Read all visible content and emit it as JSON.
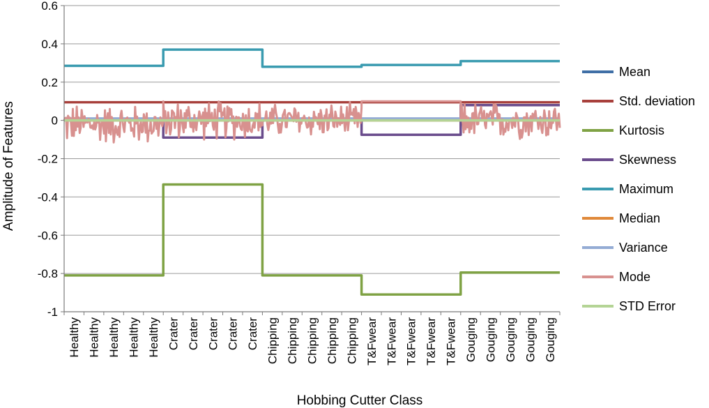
{
  "chart_data": {
    "type": "line",
    "xlabel": "Hobbing Cutter Class",
    "ylabel": "Amplitude of Features",
    "ylim": [
      -1,
      0.6
    ],
    "ytick_step": 0.2,
    "yticks": [
      "0.6",
      "0.4",
      "0.2",
      "0",
      "-0.2",
      "-0.4",
      "-0.6",
      "-0.8",
      "-1"
    ],
    "grid": "horizontal",
    "legend_position": "right",
    "categories": [
      "Healthy",
      "Healthy",
      "Healthy",
      "Healthy",
      "Healthy",
      "Crater",
      "Crater",
      "Crater",
      "Crater",
      "Crater",
      "Chipping",
      "Chipping",
      "Chipping",
      "Chipping",
      "Chipping",
      "T&Fwear",
      "T&Fwear",
      "T&Fwear",
      "T&Fwear",
      "T&Fwear",
      "Gouging",
      "Gouging",
      "Gouging",
      "Gouging",
      "Gouging"
    ],
    "series": [
      {
        "name": "Mean",
        "color": "#3f6fa6",
        "style": "step",
        "segments": [
          {
            "class": "Healthy",
            "value": 0.0
          },
          {
            "class": "Crater",
            "value": 0.0
          },
          {
            "class": "Chipping",
            "value": 0.0
          },
          {
            "class": "T&Fwear",
            "value": 0.0
          },
          {
            "class": "Gouging",
            "value": 0.0
          }
        ]
      },
      {
        "name": "Std. deviation",
        "color": "#a8403c",
        "style": "step",
        "segments": [
          {
            "class": "Healthy",
            "value": 0.095
          },
          {
            "class": "Crater",
            "value": 0.095
          },
          {
            "class": "Chipping",
            "value": 0.095
          },
          {
            "class": "T&Fwear",
            "value": 0.095
          },
          {
            "class": "Gouging",
            "value": 0.095
          }
        ]
      },
      {
        "name": "Kurtosis",
        "color": "#7fa244",
        "style": "step",
        "segments": [
          {
            "class": "Healthy",
            "value": -0.81
          },
          {
            "class": "Crater",
            "value": -0.335
          },
          {
            "class": "Chipping",
            "value": -0.81
          },
          {
            "class": "T&Fwear",
            "value": -0.91
          },
          {
            "class": "Gouging",
            "value": -0.795
          }
        ]
      },
      {
        "name": "Skewness",
        "color": "#6a4c8c",
        "style": "step",
        "segments": [
          {
            "class": "Healthy",
            "value": 0.0
          },
          {
            "class": "Crater",
            "value": -0.09
          },
          {
            "class": "Chipping",
            "value": 0.0
          },
          {
            "class": "T&Fwear",
            "value": -0.075
          },
          {
            "class": "Gouging",
            "value": 0.08
          }
        ]
      },
      {
        "name": "Maximum",
        "color": "#3a9bb0",
        "style": "step",
        "segments": [
          {
            "class": "Healthy",
            "value": 0.285
          },
          {
            "class": "Crater",
            "value": 0.37
          },
          {
            "class": "Chipping",
            "value": 0.28
          },
          {
            "class": "T&Fwear",
            "value": 0.29
          },
          {
            "class": "Gouging",
            "value": 0.31
          }
        ]
      },
      {
        "name": "Median",
        "color": "#e0893a",
        "style": "step",
        "segments": [
          {
            "class": "Healthy",
            "value": 0.0
          },
          {
            "class": "Crater",
            "value": 0.0
          },
          {
            "class": "Chipping",
            "value": 0.0
          },
          {
            "class": "T&Fwear",
            "value": 0.0
          },
          {
            "class": "Gouging",
            "value": 0.0
          }
        ]
      },
      {
        "name": "Variance",
        "color": "#94acd4",
        "style": "step",
        "segments": [
          {
            "class": "Healthy",
            "value": 0.01
          },
          {
            "class": "Crater",
            "value": 0.01
          },
          {
            "class": "Chipping",
            "value": 0.01
          },
          {
            "class": "T&Fwear",
            "value": 0.01
          },
          {
            "class": "Gouging",
            "value": 0.01
          }
        ]
      },
      {
        "name": "Mode",
        "color": "#d8918f",
        "style": "noise",
        "segments": [
          {
            "class": "Healthy",
            "center": -0.02,
            "amplitude": 0.12,
            "min": -0.17,
            "max": 0.12
          },
          {
            "class": "Crater",
            "center": 0.0,
            "amplitude": 0.12,
            "min": -0.1,
            "max": 0.15
          },
          {
            "class": "Chipping",
            "center": 0.0,
            "amplitude": 0.1,
            "min": -0.08,
            "max": 0.11
          },
          {
            "class": "T&Fwear",
            "center": 0.1,
            "amplitude": 0.0,
            "min": 0.1,
            "max": 0.1
          },
          {
            "class": "Gouging",
            "center": 0.0,
            "amplitude": 0.11,
            "min": -0.11,
            "max": 0.12
          }
        ]
      },
      {
        "name": "STD Error",
        "color": "#b4d495",
        "style": "step",
        "segments": [
          {
            "class": "Healthy",
            "value": 0.0
          },
          {
            "class": "Crater",
            "value": 0.0
          },
          {
            "class": "Chipping",
            "value": 0.0
          },
          {
            "class": "T&Fwear",
            "value": 0.0
          },
          {
            "class": "Gouging",
            "value": 0.0
          }
        ]
      }
    ]
  }
}
